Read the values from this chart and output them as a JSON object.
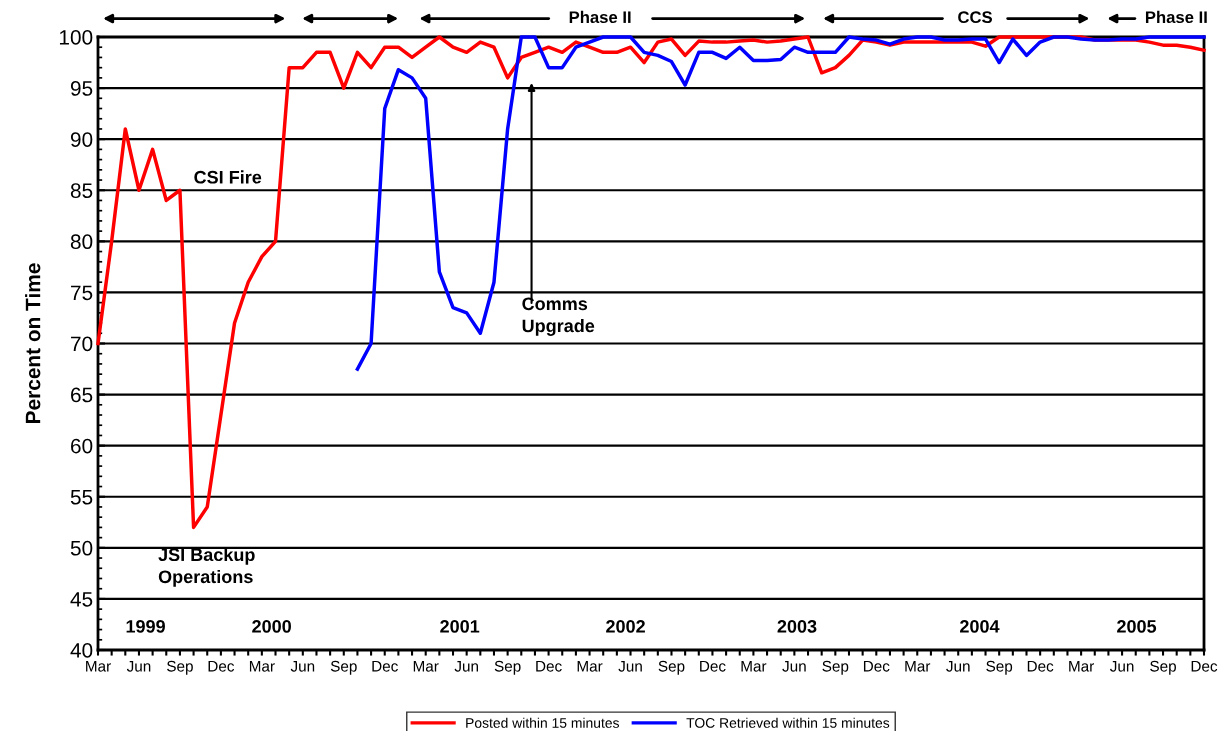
{
  "chart_data": {
    "type": "line",
    "ylabel": "Percent on Time",
    "x": [
      "1999-03",
      "1999-04",
      "1999-05",
      "1999-06",
      "1999-07",
      "1999-08",
      "1999-09",
      "1999-10",
      "1999-11",
      "1999-12",
      "2000-01",
      "2000-02",
      "2000-03",
      "2000-04",
      "2000-05",
      "2000-06",
      "2000-07",
      "2000-08",
      "2000-09",
      "2000-10",
      "2000-11",
      "2000-12",
      "2001-01",
      "2001-02",
      "2001-03",
      "2001-04",
      "2001-05",
      "2001-06",
      "2001-07",
      "2001-08",
      "2001-09",
      "2001-10",
      "2001-11",
      "2001-12",
      "2002-01",
      "2002-02",
      "2002-03",
      "2002-04",
      "2002-05",
      "2002-06",
      "2002-07",
      "2002-08",
      "2002-09",
      "2002-10",
      "2002-11",
      "2002-12",
      "2003-01",
      "2003-02",
      "2003-03",
      "2003-04",
      "2003-05",
      "2003-06",
      "2003-07",
      "2003-08",
      "2003-09",
      "2003-10",
      "2003-11",
      "2003-12",
      "2004-01",
      "2004-02",
      "2004-03",
      "2004-04",
      "2004-05",
      "2004-06",
      "2004-07",
      "2004-08",
      "2004-09",
      "2004-10",
      "2004-11",
      "2004-12",
      "2005-01",
      "2005-02",
      "2005-03",
      "2005-04",
      "2005-05",
      "2005-06",
      "2005-07",
      "2005-08",
      "2005-09",
      "2005-10",
      "2005-11",
      "2005-12"
    ],
    "series": [
      {
        "name": "Posted within 15 minutes",
        "color": "#ff0000",
        "values": [
          70,
          80,
          91,
          85,
          89,
          84,
          85,
          52,
          54,
          63,
          72,
          76,
          78.5,
          80,
          97,
          97,
          98.5,
          98.5,
          95,
          98.5,
          97,
          99,
          99,
          98,
          99,
          100,
          99,
          98.5,
          99.5,
          99,
          96,
          98,
          98.5,
          99,
          98.5,
          99.5,
          99,
          98.5,
          98.5,
          99,
          97.5,
          99.5,
          99.8,
          98.2,
          99.6,
          99.5,
          99.5,
          99.6,
          99.7,
          99.5,
          99.6,
          99.8,
          100,
          96.5,
          97,
          98.2,
          99.7,
          99.5,
          99.2,
          99.5,
          99.5,
          99.5,
          99.5,
          99.5,
          99.5,
          99.1,
          100,
          100,
          100,
          100,
          100,
          100,
          100,
          99.7,
          99.7,
          99.7,
          99.7,
          99.5,
          99.2,
          99.2,
          99,
          98.7
        ]
      },
      {
        "name": "TOC Retrieved within 15 minutes",
        "color": "#0000ff",
        "values": [
          null,
          null,
          null,
          null,
          null,
          null,
          null,
          null,
          null,
          null,
          null,
          null,
          null,
          null,
          null,
          null,
          null,
          null,
          null,
          67.5,
          70,
          93,
          96.8,
          96,
          94,
          77,
          73.5,
          73,
          71,
          76,
          91,
          100,
          100,
          97,
          97,
          99,
          99.5,
          100,
          100,
          100,
          98.5,
          98.2,
          97.6,
          95.3,
          98.5,
          98.5,
          97.9,
          99,
          97.7,
          97.7,
          97.8,
          99,
          98.5,
          98.5,
          98.5,
          100,
          99.8,
          99.7,
          99.3,
          99.8,
          100,
          100,
          99.7,
          99.7,
          99.8,
          99.8,
          97.5,
          99.8,
          98.2,
          99.5,
          100,
          100,
          99.8,
          99.7,
          99.7,
          99.8,
          99.8,
          100,
          100,
          100,
          100,
          100
        ]
      }
    ],
    "xlim": [
      "1999-03",
      "2005-12"
    ],
    "xticks": [
      {
        "value": "1999-03",
        "label": "Mar"
      },
      {
        "value": "1999-04",
        "label": null
      },
      {
        "value": "1999-05",
        "label": null
      },
      {
        "value": "1999-06",
        "label": "Jun"
      },
      {
        "value": "1999-07",
        "label": null
      },
      {
        "value": "1999-08",
        "label": null
      },
      {
        "value": "1999-09",
        "label": "Sep"
      },
      {
        "value": "1999-10",
        "label": null
      },
      {
        "value": "1999-11",
        "label": null
      },
      {
        "value": "1999-12",
        "label": "Dec"
      },
      {
        "value": "2000-01",
        "label": null
      },
      {
        "value": "2000-02",
        "label": null
      },
      {
        "value": "2000-03",
        "label": "Mar"
      },
      {
        "value": "2000-04",
        "label": null
      },
      {
        "value": "2000-05",
        "label": null
      },
      {
        "value": "2000-06",
        "label": "Jun"
      },
      {
        "value": "2000-07",
        "label": null
      },
      {
        "value": "2000-08",
        "label": null
      },
      {
        "value": "2000-09",
        "label": "Sep"
      },
      {
        "value": "2000-10",
        "label": null
      },
      {
        "value": "2000-11",
        "label": null
      },
      {
        "value": "2000-12",
        "label": "Dec"
      },
      {
        "value": "2001-01",
        "label": null
      },
      {
        "value": "2001-02",
        "label": null
      },
      {
        "value": "2001-03",
        "label": "Mar"
      },
      {
        "value": "2001-04",
        "label": null
      },
      {
        "value": "2001-05",
        "label": null
      },
      {
        "value": "2001-06",
        "label": "Jun"
      },
      {
        "value": "2001-07",
        "label": null
      },
      {
        "value": "2001-08",
        "label": null
      },
      {
        "value": "2001-09",
        "label": "Sep"
      },
      {
        "value": "2001-10",
        "label": null
      },
      {
        "value": "2001-11",
        "label": null
      },
      {
        "value": "2001-12",
        "label": "Dec"
      },
      {
        "value": "2002-01",
        "label": null
      },
      {
        "value": "2002-02",
        "label": null
      },
      {
        "value": "2002-03",
        "label": "Mar"
      },
      {
        "value": "2002-04",
        "label": null
      },
      {
        "value": "2002-05",
        "label": null
      },
      {
        "value": "2002-06",
        "label": "Jun"
      },
      {
        "value": "2002-07",
        "label": null
      },
      {
        "value": "2002-08",
        "label": null
      },
      {
        "value": "2002-09",
        "label": "Sep"
      },
      {
        "value": "2002-10",
        "label": null
      },
      {
        "value": "2002-11",
        "label": null
      },
      {
        "value": "2002-12",
        "label": "Dec"
      },
      {
        "value": "2003-01",
        "label": null
      },
      {
        "value": "2003-02",
        "label": null
      },
      {
        "value": "2003-03",
        "label": "Mar"
      },
      {
        "value": "2003-04",
        "label": null
      },
      {
        "value": "2003-05",
        "label": null
      },
      {
        "value": "2003-06",
        "label": "Jun"
      },
      {
        "value": "2003-07",
        "label": null
      },
      {
        "value": "2003-08",
        "label": null
      },
      {
        "value": "2003-09",
        "label": "Sep"
      },
      {
        "value": "2003-10",
        "label": null
      },
      {
        "value": "2003-11",
        "label": null
      },
      {
        "value": "2003-12",
        "label": "Dec"
      },
      {
        "value": "2004-01",
        "label": null
      },
      {
        "value": "2004-02",
        "label": null
      },
      {
        "value": "2004-03",
        "label": "Mar"
      },
      {
        "value": "2004-04",
        "label": null
      },
      {
        "value": "2004-05",
        "label": null
      },
      {
        "value": "2004-06",
        "label": "Jun"
      },
      {
        "value": "2004-07",
        "label": null
      },
      {
        "value": "2004-08",
        "label": null
      },
      {
        "value": "2004-09",
        "label": "Sep"
      },
      {
        "value": "2004-10",
        "label": null
      },
      {
        "value": "2004-11",
        "label": null
      },
      {
        "value": "2004-12",
        "label": "Dec"
      },
      {
        "value": "2005-01",
        "label": null
      },
      {
        "value": "2005-02",
        "label": null
      },
      {
        "value": "2005-03",
        "label": "Mar"
      },
      {
        "value": "2005-04",
        "label": null
      },
      {
        "value": "2005-05",
        "label": null
      },
      {
        "value": "2005-06",
        "label": "Jun"
      },
      {
        "value": "2005-07",
        "label": null
      },
      {
        "value": "2005-08",
        "label": null
      },
      {
        "value": "2005-09",
        "label": "Sep"
      },
      {
        "value": "2005-10",
        "label": null
      },
      {
        "value": "2005-11",
        "label": null
      },
      {
        "value": "2005-12",
        "label": "Dec"
      }
    ],
    "ylim": [
      40,
      100
    ],
    "yticks": [
      40,
      45,
      50,
      55,
      60,
      65,
      70,
      75,
      80,
      85,
      90,
      95,
      100
    ],
    "grid": "y",
    "legend": "bottom",
    "marker": "none",
    "line_style": "solid",
    "annotations": [
      {
        "text": "CSI Fire",
        "x": "1999-09",
        "y": 85
      },
      {
        "text": "JSI Backup Operations",
        "x": "1999-10",
        "y": 52
      },
      "Comms Upgrade",
      "1999",
      "2000",
      "2001",
      "2002",
      "2003",
      "2004",
      "2005",
      "Phase II",
      "CCS",
      "Phase II"
    ]
  }
}
